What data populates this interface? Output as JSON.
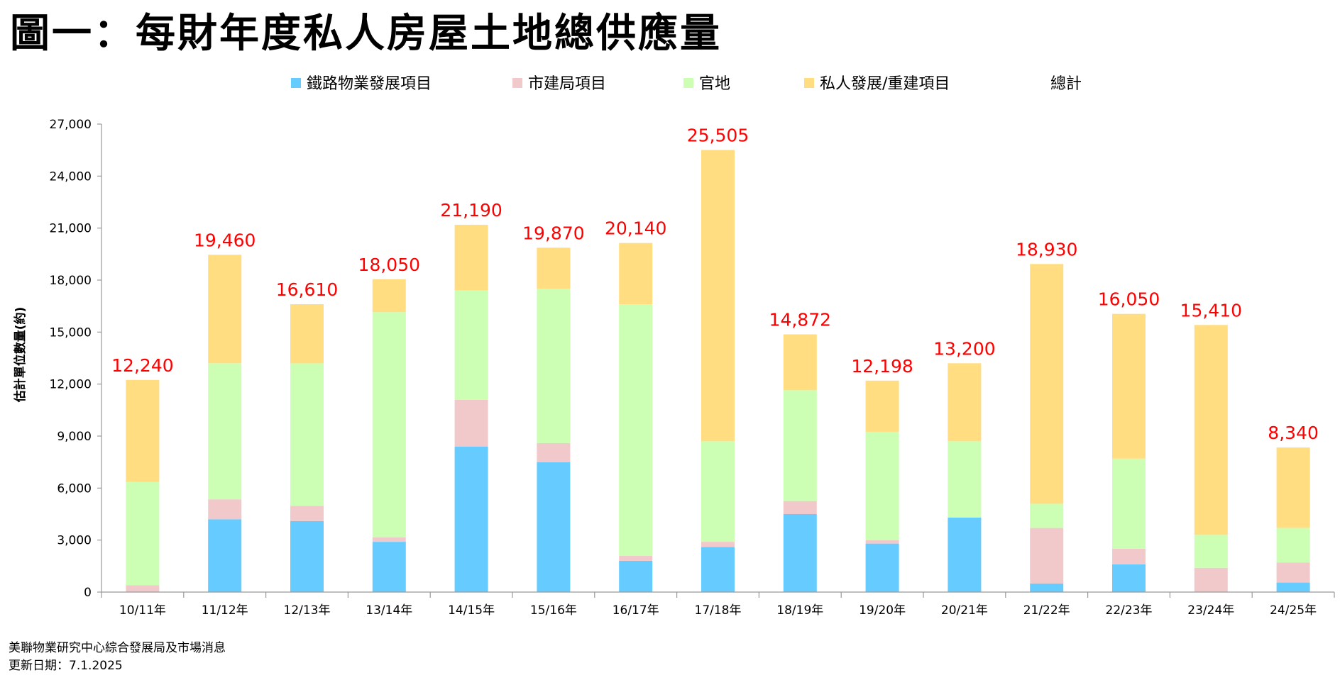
{
  "title": "圖一：每財年度私人房屋土地總供應量",
  "footer": {
    "source": "美聯物業研究中心綜合發展局及市場消息",
    "updated": "更新日期：7.1.2025"
  },
  "colors": {
    "rail": "#66ccff",
    "ura": "#f2c9ca",
    "gov": "#ccffb3",
    "private": "#ffdd80",
    "total": "#ff0000",
    "axis": "#999999"
  },
  "chart_data": {
    "type": "bar",
    "stacked": true,
    "ylabel": "估計單位數量(約)",
    "ylim": [
      0,
      27000
    ],
    "yticks": [
      "0",
      "3,000",
      "6,000",
      "9,000",
      "12,000",
      "15,000",
      "18,000",
      "21,000",
      "24,000",
      "27,000"
    ],
    "grid": false,
    "legend_position": "top",
    "categories": [
      "10/11年",
      "11/12年",
      "12/13年",
      "13/14年",
      "14/15年",
      "15/16年",
      "16/17年",
      "17/18年",
      "18/19年",
      "19/20年",
      "20/21年",
      "21/22年",
      "22/23年",
      "23/24年",
      "24/25年"
    ],
    "series": [
      {
        "name": "鐵路物業發展項目",
        "values": [
          0,
          4200,
          4100,
          2900,
          8400,
          7500,
          1800,
          2600,
          4500,
          2800,
          4300,
          500,
          1600,
          0,
          550
        ]
      },
      {
        "name": "市建局項目",
        "values": [
          400,
          1150,
          880,
          250,
          2700,
          1100,
          300,
          300,
          750,
          200,
          0,
          3200,
          900,
          1400,
          1150
        ]
      },
      {
        "name": "官地",
        "values": [
          5950,
          7850,
          8220,
          13000,
          6300,
          8900,
          14500,
          5800,
          6400,
          6250,
          4400,
          1400,
          5200,
          1900,
          2000
        ]
      },
      {
        "name": "私人發展/重建項目",
        "values": [
          5890,
          6260,
          3410,
          1900,
          3790,
          2370,
          3540,
          16805,
          3222,
          2948,
          4500,
          13830,
          8350,
          12110,
          4640
        ]
      }
    ],
    "totals_legend": "總計",
    "totals": [
      12240,
      19460,
      16610,
      18050,
      21190,
      19870,
      20140,
      25505,
      14872,
      12198,
      13200,
      18930,
      16050,
      15410,
      8340
    ],
    "total_labels": [
      "12,240",
      "19,460",
      "16,610",
      "18,050",
      "21,190",
      "19,870",
      "20,140",
      "25,505",
      "14,872",
      "12,198",
      "13,200",
      "18,930",
      "16,050",
      "15,410",
      "8,340"
    ]
  }
}
